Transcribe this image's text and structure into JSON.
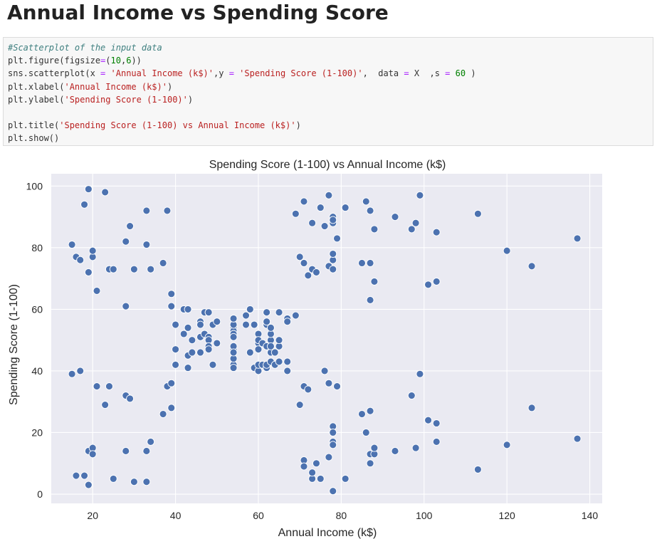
{
  "heading": "Annual Income vs Spending Score",
  "code": {
    "lines": [
      [
        {
          "t": "#Scatterplot of the input data",
          "c": "comment"
        }
      ],
      [
        {
          "t": "plt.",
          "c": "name"
        },
        {
          "t": "figure",
          "c": "name"
        },
        {
          "t": "(figsize",
          "c": "name"
        },
        {
          "t": "=",
          "c": "op"
        },
        {
          "t": "(",
          "c": "name"
        },
        {
          "t": "10",
          "c": "num"
        },
        {
          "t": ",",
          "c": "name"
        },
        {
          "t": "6",
          "c": "num"
        },
        {
          "t": "))",
          "c": "name"
        }
      ],
      [
        {
          "t": "sns.scatterplot(x ",
          "c": "name"
        },
        {
          "t": "=",
          "c": "op"
        },
        {
          "t": " ",
          "c": "name"
        },
        {
          "t": "'Annual Income (k$)'",
          "c": "str"
        },
        {
          "t": ",y ",
          "c": "name"
        },
        {
          "t": "=",
          "c": "op"
        },
        {
          "t": " ",
          "c": "name"
        },
        {
          "t": "'Spending Score (1-100)'",
          "c": "str"
        },
        {
          "t": ",  data ",
          "c": "name"
        },
        {
          "t": "=",
          "c": "op"
        },
        {
          "t": " X  ,s ",
          "c": "name"
        },
        {
          "t": "=",
          "c": "op"
        },
        {
          "t": " ",
          "c": "name"
        },
        {
          "t": "60",
          "c": "num"
        },
        {
          "t": " )",
          "c": "name"
        }
      ],
      [
        {
          "t": "plt.xlabel(",
          "c": "name"
        },
        {
          "t": "'Annual Income (k$)'",
          "c": "str"
        },
        {
          "t": ")",
          "c": "name"
        }
      ],
      [
        {
          "t": "plt.ylabel(",
          "c": "name"
        },
        {
          "t": "'Spending Score (1-100)'",
          "c": "str"
        },
        {
          "t": ")",
          "c": "name"
        }
      ],
      [
        {
          "t": "",
          "c": "name"
        }
      ],
      [
        {
          "t": "plt.title(",
          "c": "name"
        },
        {
          "t": "'Spending Score (1-100) vs Annual Income (k$)'",
          "c": "str"
        },
        {
          "t": ")",
          "c": "name"
        }
      ],
      [
        {
          "t": "plt.show()",
          "c": "name"
        }
      ]
    ]
  },
  "chart_data": {
    "type": "scatter",
    "title": "Spending Score (1-100) vs Annual Income (k$)",
    "xlabel": "Annual Income (k$)",
    "ylabel": "Spending Score (1-100)",
    "xlim": [
      10,
      143
    ],
    "ylim": [
      -3,
      104
    ],
    "xticks": [
      20,
      40,
      60,
      80,
      100,
      120,
      140
    ],
    "yticks": [
      0,
      20,
      40,
      60,
      80,
      100
    ],
    "grid": true,
    "colors": {
      "background": "#eaeaf2",
      "grid": "#ffffff",
      "marker": "#4c72b0",
      "marker_edge": "#ffffff"
    },
    "points": [
      [
        15,
        39
      ],
      [
        15,
        81
      ],
      [
        16,
        6
      ],
      [
        16,
        77
      ],
      [
        17,
        40
      ],
      [
        17,
        76
      ],
      [
        18,
        6
      ],
      [
        18,
        94
      ],
      [
        19,
        3
      ],
      [
        19,
        72
      ],
      [
        19,
        14
      ],
      [
        19,
        99
      ],
      [
        20,
        15
      ],
      [
        20,
        77
      ],
      [
        20,
        13
      ],
      [
        20,
        79
      ],
      [
        21,
        35
      ],
      [
        21,
        66
      ],
      [
        23,
        29
      ],
      [
        23,
        98
      ],
      [
        24,
        35
      ],
      [
        24,
        73
      ],
      [
        25,
        5
      ],
      [
        25,
        73
      ],
      [
        28,
        14
      ],
      [
        28,
        82
      ],
      [
        28,
        32
      ],
      [
        28,
        61
      ],
      [
        29,
        31
      ],
      [
        29,
        87
      ],
      [
        30,
        4
      ],
      [
        30,
        73
      ],
      [
        33,
        4
      ],
      [
        33,
        92
      ],
      [
        33,
        14
      ],
      [
        33,
        81
      ],
      [
        34,
        17
      ],
      [
        34,
        73
      ],
      [
        37,
        26
      ],
      [
        37,
        75
      ],
      [
        38,
        35
      ],
      [
        38,
        92
      ],
      [
        39,
        36
      ],
      [
        39,
        61
      ],
      [
        39,
        28
      ],
      [
        39,
        65
      ],
      [
        40,
        55
      ],
      [
        40,
        47
      ],
      [
        40,
        42
      ],
      [
        40,
        42
      ],
      [
        42,
        52
      ],
      [
        42,
        60
      ],
      [
        43,
        54
      ],
      [
        43,
        60
      ],
      [
        43,
        45
      ],
      [
        43,
        41
      ],
      [
        44,
        50
      ],
      [
        44,
        46
      ],
      [
        46,
        51
      ],
      [
        46,
        46
      ],
      [
        46,
        56
      ],
      [
        46,
        55
      ],
      [
        47,
        52
      ],
      [
        47,
        59
      ],
      [
        48,
        51
      ],
      [
        48,
        59
      ],
      [
        48,
        50
      ],
      [
        48,
        48
      ],
      [
        48,
        59
      ],
      [
        48,
        47
      ],
      [
        49,
        55
      ],
      [
        49,
        42
      ],
      [
        50,
        49
      ],
      [
        50,
        56
      ],
      [
        54,
        47
      ],
      [
        54,
        54
      ],
      [
        54,
        53
      ],
      [
        54,
        48
      ],
      [
        54,
        52
      ],
      [
        54,
        42
      ],
      [
        54,
        51
      ],
      [
        54,
        55
      ],
      [
        54,
        41
      ],
      [
        54,
        44
      ],
      [
        54,
        57
      ],
      [
        54,
        46
      ],
      [
        57,
        58
      ],
      [
        57,
        55
      ],
      [
        58,
        60
      ],
      [
        58,
        46
      ],
      [
        59,
        55
      ],
      [
        59,
        41
      ],
      [
        60,
        49
      ],
      [
        60,
        40
      ],
      [
        60,
        42
      ],
      [
        60,
        52
      ],
      [
        60,
        47
      ],
      [
        60,
        50
      ],
      [
        61,
        42
      ],
      [
        61,
        49
      ],
      [
        62,
        41
      ],
      [
        62,
        48
      ],
      [
        62,
        59
      ],
      [
        62,
        55
      ],
      [
        62,
        56
      ],
      [
        62,
        42
      ],
      [
        63,
        50
      ],
      [
        63,
        46
      ],
      [
        63,
        43
      ],
      [
        63,
        48
      ],
      [
        63,
        52
      ],
      [
        63,
        54
      ],
      [
        64,
        42
      ],
      [
        64,
        46
      ],
      [
        65,
        48
      ],
      [
        65,
        50
      ],
      [
        65,
        43
      ],
      [
        65,
        59
      ],
      [
        67,
        43
      ],
      [
        67,
        57
      ],
      [
        67,
        56
      ],
      [
        67,
        40
      ],
      [
        69,
        58
      ],
      [
        69,
        91
      ],
      [
        70,
        29
      ],
      [
        70,
        77
      ],
      [
        71,
        35
      ],
      [
        71,
        95
      ],
      [
        71,
        11
      ],
      [
        71,
        75
      ],
      [
        71,
        9
      ],
      [
        71,
        75
      ],
      [
        72,
        34
      ],
      [
        72,
        71
      ],
      [
        73,
        5
      ],
      [
        73,
        88
      ],
      [
        73,
        7
      ],
      [
        73,
        73
      ],
      [
        74,
        10
      ],
      [
        74,
        72
      ],
      [
        75,
        5
      ],
      [
        75,
        93
      ],
      [
        76,
        40
      ],
      [
        76,
        87
      ],
      [
        77,
        12
      ],
      [
        77,
        97
      ],
      [
        77,
        36
      ],
      [
        77,
        74
      ],
      [
        78,
        22
      ],
      [
        78,
        90
      ],
      [
        78,
        17
      ],
      [
        78,
        88
      ],
      [
        78,
        20
      ],
      [
        78,
        76
      ],
      [
        78,
        16
      ],
      [
        78,
        89
      ],
      [
        78,
        1
      ],
      [
        78,
        78
      ],
      [
        78,
        1
      ],
      [
        78,
        73
      ],
      [
        79,
        35
      ],
      [
        79,
        83
      ],
      [
        81,
        5
      ],
      [
        81,
        93
      ],
      [
        85,
        26
      ],
      [
        85,
        75
      ],
      [
        86,
        20
      ],
      [
        86,
        95
      ],
      [
        87,
        27
      ],
      [
        87,
        63
      ],
      [
        87,
        13
      ],
      [
        87,
        75
      ],
      [
        87,
        10
      ],
      [
        87,
        92
      ],
      [
        88,
        13
      ],
      [
        88,
        86
      ],
      [
        88,
        15
      ],
      [
        88,
        69
      ],
      [
        93,
        14
      ],
      [
        93,
        90
      ],
      [
        97,
        32
      ],
      [
        97,
        86
      ],
      [
        98,
        15
      ],
      [
        98,
        88
      ],
      [
        99,
        39
      ],
      [
        99,
        97
      ],
      [
        101,
        24
      ],
      [
        101,
        68
      ],
      [
        103,
        17
      ],
      [
        103,
        85
      ],
      [
        103,
        23
      ],
      [
        103,
        69
      ],
      [
        113,
        8
      ],
      [
        113,
        91
      ],
      [
        120,
        16
      ],
      [
        120,
        79
      ],
      [
        126,
        28
      ],
      [
        126,
        74
      ],
      [
        137,
        18
      ],
      [
        137,
        83
      ]
    ]
  }
}
